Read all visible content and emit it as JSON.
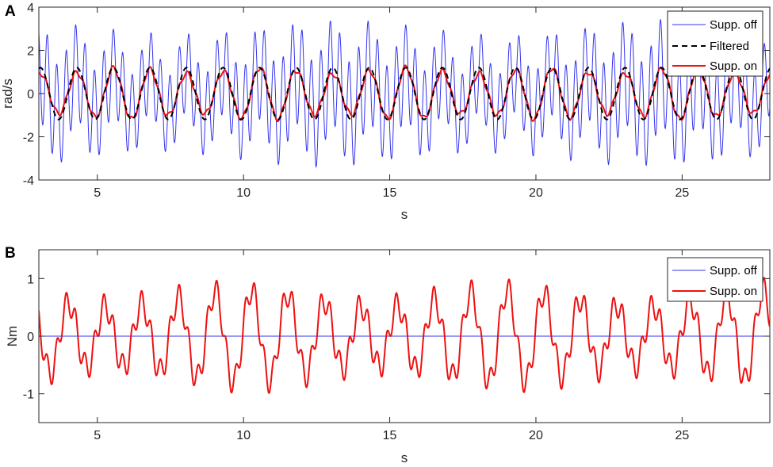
{
  "chart_data": [
    {
      "panel": "A",
      "type": "line",
      "xlabel": "s",
      "ylabel": "rad/s",
      "xlim": [
        3,
        28
      ],
      "ylim": [
        -4,
        4
      ],
      "xticks": [
        5,
        10,
        15,
        20,
        25
      ],
      "yticks": [
        -4,
        -2,
        0,
        2,
        4
      ],
      "grid": false,
      "legend_position": "top-right",
      "series": [
        {
          "name": "Supp. off",
          "color": "#3333ee",
          "style": "solid",
          "amplitude": 2.5,
          "frequency_hz": 3.1,
          "low_component_amplitude": 1.0,
          "low_component_frequency_hz": 0.8
        },
        {
          "name": "Filtered",
          "color": "#000000",
          "style": "dashed",
          "amplitude": 1.2,
          "frequency_hz": 0.8
        },
        {
          "name": "Supp. on",
          "color": "#ee1111",
          "style": "solid",
          "amplitude": 1.15,
          "frequency_hz": 0.8
        }
      ]
    },
    {
      "panel": "B",
      "type": "line",
      "xlabel": "s",
      "ylabel": "Nm",
      "xlim": [
        3,
        28
      ],
      "ylim": [
        -1.5,
        1.5
      ],
      "xticks": [
        5,
        10,
        15,
        20,
        25
      ],
      "yticks": [
        -1,
        0,
        1
      ],
      "grid": false,
      "legend_position": "top-right",
      "series": [
        {
          "name": "Supp. off",
          "color": "#3333ee",
          "style": "solid",
          "constant_value": 0
        },
        {
          "name": "Supp. on",
          "color": "#ee1111",
          "style": "solid",
          "amplitude": 0.7,
          "frequency_hz": 0.8,
          "ripple_frequency_hz": 3.1
        }
      ]
    }
  ]
}
